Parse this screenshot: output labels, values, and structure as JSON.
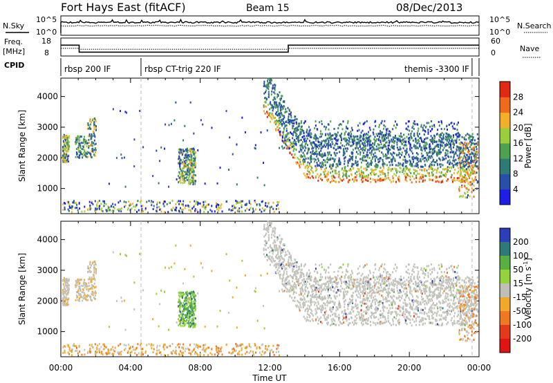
{
  "header": {
    "station": "Fort Hays East (fitACF)",
    "beam": "Beam 15",
    "date": "08/Dec/2013"
  },
  "top_panels": {
    "nsky_label": "N.Sky",
    "nsky_ticks": [
      "10^5",
      "10^0"
    ],
    "nsearch_label": "N.Search",
    "nsearch_ticks": [
      "10^5",
      "10^0"
    ],
    "freq_label": "Freq.",
    "freq_unit": "[MHz]",
    "freq_ticks": [
      18,
      8
    ],
    "nave_label": "Nave",
    "nave_ticks": [
      60,
      0
    ],
    "cpid_label": "CPID",
    "freq_segments": [
      {
        "t0": 0.0,
        "t1": 1.05,
        "value": 14.5
      },
      {
        "t0": 1.05,
        "t1": 13.05,
        "value": 9.7
      },
      {
        "t0": 13.05,
        "t1": 24.0,
        "value": 14.5
      }
    ],
    "nave_segments": [
      {
        "t0": 0.0,
        "t1": 1.05,
        "value": 26
      },
      {
        "t0": 1.05,
        "t1": 13.05,
        "value": 22
      },
      {
        "t0": 13.05,
        "t1": 24.0,
        "value": 26
      }
    ]
  },
  "cpid_segments": [
    {
      "label": "rbsp 200 IF",
      "start": 0.0,
      "end": 4.6
    },
    {
      "label": "rbsp CT-trig 220 IF",
      "start": 4.6,
      "end": 23.6
    },
    {
      "label": "themis -3300 IF",
      "start": 23.6,
      "end": 24.0
    }
  ],
  "chart_data": [
    {
      "type": "heatmap",
      "name": "power",
      "ylabel": "Slant Range [km]",
      "yticks": [
        1000,
        2000,
        3000,
        4000
      ],
      "ylim": [
        180,
        4600
      ],
      "xlim": [
        0,
        24
      ],
      "colorbar": {
        "label": "Power [dB]",
        "ticks": [
          4,
          8,
          12,
          16,
          20,
          24,
          28
        ],
        "colors": [
          "#1e1ee6",
          "#2a4fa8",
          "#2e7a74",
          "#4fa050",
          "#9bcd3c",
          "#f2b02a",
          "#f06a1e",
          "#e02a14"
        ],
        "range": [
          0,
          32
        ]
      }
    },
    {
      "type": "heatmap",
      "name": "velocity",
      "ylabel": "Slant Range [km]",
      "yticks": [
        1000,
        2000,
        3000,
        4000
      ],
      "ylim": [
        180,
        4600
      ],
      "xlim": [
        0,
        24
      ],
      "xlabel": "Time UT",
      "xticks": [
        "00:00",
        "04:00",
        "08:00",
        "12:00",
        "16:00",
        "20:00",
        "00:00"
      ],
      "colorbar": {
        "label": "Velocity [m s",
        "label_sup": "-1",
        "label_close": "]",
        "ticks": [
          200,
          100,
          50,
          15,
          -15,
          -50,
          -100,
          -200
        ],
        "colors": [
          "#2a3fb8",
          "#2f7a78",
          "#57b040",
          "#93d33e",
          "#c0c0b8",
          "#f2a82a",
          "#f07820",
          "#e23a1a",
          "#e01414"
        ]
      }
    }
  ]
}
